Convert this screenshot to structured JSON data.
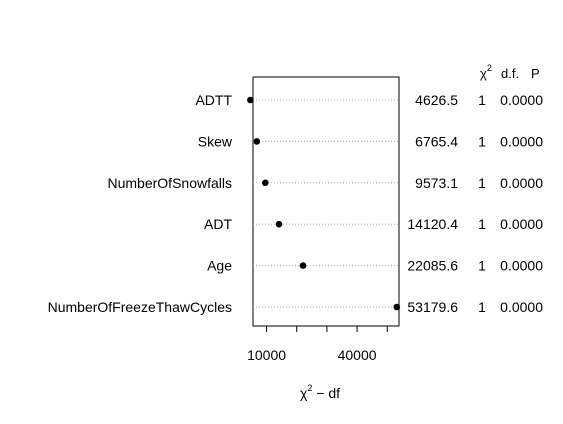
{
  "chart_data": {
    "type": "dotplot",
    "title": "",
    "xlabel": "χ² − df",
    "xlabel_parts": {
      "main": "χ",
      "sup": "2",
      "rest": " − df"
    },
    "xlim": [
      5500,
      53900
    ],
    "xticks": [
      10000,
      40000
    ],
    "tick_labels": [
      "10000",
      "40000"
    ],
    "grid": "dotted horizontal guide lines",
    "table_header": {
      "chi_symbol": "χ",
      "chi_sup": "2",
      "df": "d.f.",
      "p": "P"
    },
    "rows": [
      {
        "label": "ADTT",
        "value": 4625.5,
        "chi2": "4626.5",
        "df": "1",
        "p": "0.0000"
      },
      {
        "label": "Skew",
        "value": 6764.4,
        "chi2": "6765.4",
        "df": "1",
        "p": "0.0000"
      },
      {
        "label": "NumberOfSnowfalls",
        "value": 9572.1,
        "chi2": "9573.1",
        "df": "1",
        "p": "0.0000"
      },
      {
        "label": "ADT",
        "value": 14119.4,
        "chi2": "14120.4",
        "df": "1",
        "p": "0.0000"
      },
      {
        "label": "Age",
        "value": 22084.6,
        "chi2": "22085.6",
        "df": "1",
        "p": "0.0000"
      },
      {
        "label": "NumberOfFreezeThawCycles",
        "value": 53178.6,
        "chi2": "53179.6",
        "df": "1",
        "p": "0.0000"
      }
    ]
  }
}
